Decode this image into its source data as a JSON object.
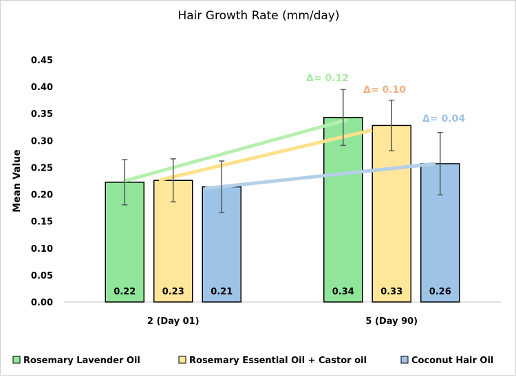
{
  "chart_data": {
    "type": "bar",
    "title": "Hair Growth Rate (mm/day)",
    "xlabel": "",
    "ylabel": "Mean Value",
    "ylim": [
      0,
      0.45
    ],
    "yticks": [
      "0.00",
      "0.05",
      "0.10",
      "0.15",
      "0.20",
      "0.25",
      "0.30",
      "0.35",
      "0.40",
      "0.45"
    ],
    "grid": false,
    "legend_position": "bottom",
    "categories": [
      "2 (Day 01)",
      "5 (Day 90)"
    ],
    "series": [
      {
        "name": "Rosemary Lavender Oil",
        "color": "#90e59a",
        "values": [
          0.2225,
          0.343
        ],
        "errors": [
          0.042,
          0.052
        ],
        "labels": [
          "0.22",
          "0.34"
        ],
        "delta_label": "Δ= 0.12",
        "delta_color": "#a8eaa0",
        "line_color": "#b6f0ae"
      },
      {
        "name": "Rosemary Essential Oil + Castor oil",
        "color": "#ffe699",
        "values": [
          0.226,
          0.328
        ],
        "errors": [
          0.04,
          0.047
        ],
        "labels": [
          "0.23",
          "0.33"
        ],
        "delta_label": "Δ= 0.10",
        "delta_color": "#f4b183",
        "line_color": "#ffe08a"
      },
      {
        "name": "Coconut Hair Oil",
        "color": "#9dc3e6",
        "values": [
          0.214,
          0.257
        ],
        "errors": [
          0.048,
          0.058
        ],
        "labels": [
          "0.21",
          "0.26"
        ],
        "delta_label": "Δ= 0.04",
        "delta_color": "#9dc3e6",
        "line_color": "#b4cfe8"
      }
    ]
  }
}
